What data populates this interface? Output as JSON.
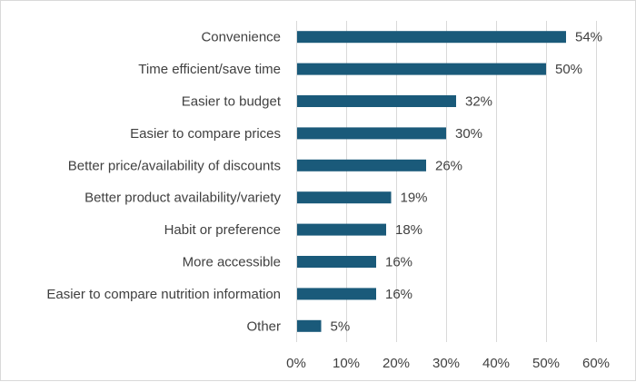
{
  "chart_data": {
    "type": "bar",
    "orientation": "horizontal",
    "title": "",
    "xlabel": "",
    "ylabel": "",
    "categories": [
      "Convenience",
      "Time efficient/save time",
      "Easier to budget",
      "Easier to compare prices",
      "Better price/availability of discounts",
      "Better product availability/variety",
      "Habit or preference",
      "More accessible",
      "Easier to compare nutrition information",
      "Other"
    ],
    "values": [
      54,
      50,
      32,
      30,
      26,
      19,
      18,
      16,
      16,
      5
    ],
    "data_labels": [
      "54%",
      "50%",
      "32%",
      "30%",
      "26%",
      "19%",
      "18%",
      "16%",
      "16%",
      "5%"
    ],
    "xlim": [
      0,
      60
    ],
    "x_ticks": [
      0,
      10,
      20,
      30,
      40,
      50,
      60
    ],
    "x_tick_labels": [
      "0%",
      "10%",
      "20%",
      "30%",
      "40%",
      "50%",
      "60%"
    ],
    "bar_color": "#1a5a7a",
    "grid": "vertical",
    "legend": "none"
  }
}
